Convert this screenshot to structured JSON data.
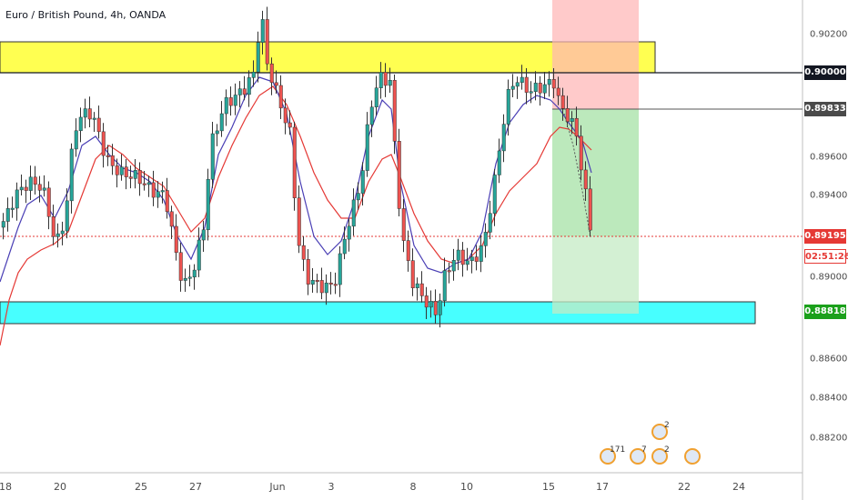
{
  "header": {
    "title": "Euro / British Pound, 4h, OANDA"
  },
  "price_scale": {
    "labels": [
      "0.90200",
      "0.89600",
      "0.89400",
      "0.89000",
      "0.88600",
      "0.88400",
      "0.88200"
    ],
    "badges": {
      "level_90000": "0.90000",
      "level_89833": "0.89833",
      "current_price": "0.89195",
      "countdown": "02:51:26",
      "level_88818": "0.88818"
    }
  },
  "time_scale": {
    "labels": [
      "18",
      "20",
      "25",
      "27",
      "Jun",
      "3",
      "8",
      "10",
      "15",
      "17",
      "22",
      "24"
    ]
  },
  "events": [
    {
      "count": "171"
    },
    {
      "count": "7"
    },
    {
      "count": "2"
    },
    {
      "count": "2"
    },
    {
      "count": ""
    }
  ],
  "colors": {
    "resistance_zone": "#ffff33",
    "support_zone": "#33ffff",
    "stop_zone": "#ffc8c8",
    "target_zone": "#a9e4a9",
    "bull_candle": "#26a69a",
    "bear_candle": "#ef5350",
    "fast_ma": "#4a3fb5",
    "slow_ma": "#e53935"
  }
}
